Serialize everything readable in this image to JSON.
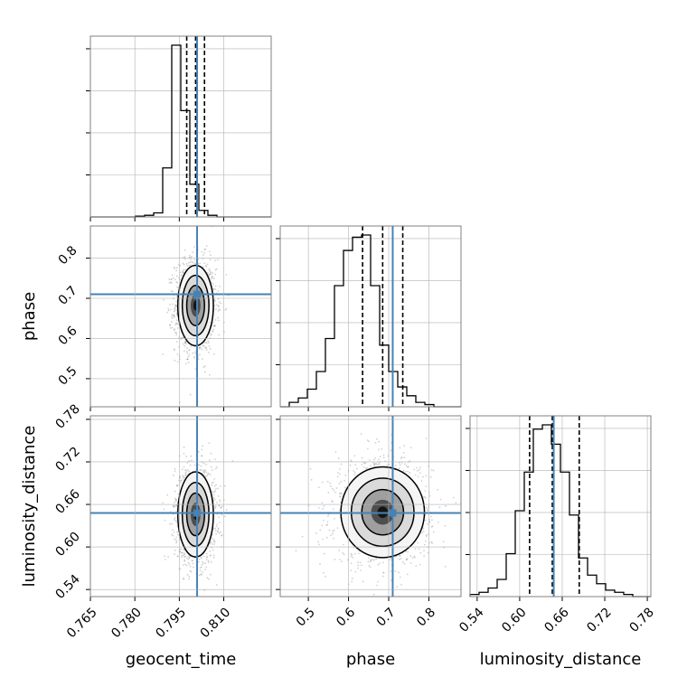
{
  "colors": {
    "truth": "#4682b4",
    "line": "#000000",
    "grid": "#b0b0b0",
    "scatter": "#7a7a7a"
  },
  "chart_data": {
    "type": "corner",
    "parameters": [
      "geocent_time",
      "phase",
      "luminosity_distance"
    ],
    "truth": {
      "geocent_time": 0.801,
      "phase": 0.71,
      "luminosity_distance": 0.648
    },
    "quantiles": {
      "geocent_time": [
        0.7975,
        0.8005,
        0.8035
      ],
      "phase": [
        0.635,
        0.685,
        0.735
      ],
      "luminosity_distance": [
        0.614,
        0.646,
        0.684
      ]
    },
    "axes": {
      "geocent_time": {
        "range": [
          0.765,
          0.826
        ],
        "ticks": [
          0.765,
          0.78,
          0.795,
          0.81
        ],
        "tick_labels": [
          "0.765",
          "0.780",
          "0.795",
          "0.810"
        ]
      },
      "phase": {
        "range": [
          0.43,
          0.88
        ],
        "ticks_x": [
          0.5,
          0.6,
          0.7,
          0.8
        ],
        "tick_labels_x": [
          "0.5",
          "0.6",
          "0.7",
          "0.8"
        ],
        "ticks_y": [
          0.5,
          0.6,
          0.7,
          0.8
        ],
        "tick_labels_y": [
          "0.5",
          "0.6",
          "0.7",
          "0.8"
        ]
      },
      "luminosity_distance": {
        "range": [
          0.53,
          0.785
        ],
        "ticks": [
          0.54,
          0.6,
          0.66,
          0.72,
          0.78
        ],
        "tick_labels": [
          "0.54",
          "0.60",
          "0.66",
          "0.72",
          "0.78"
        ]
      }
    },
    "histograms": {
      "geocent_time": {
        "edges_range": [
          0.765,
          0.826
        ],
        "bins": 20,
        "counts": [
          0,
          0,
          0,
          0,
          0,
          1,
          2,
          5,
          60,
          210,
          130,
          40,
          8,
          2,
          0,
          0,
          0,
          0,
          0,
          0
        ]
      },
      "phase": {
        "edges_range": [
          0.43,
          0.88
        ],
        "bins": 20,
        "counts": [
          0,
          2,
          4,
          8,
          16,
          31,
          55,
          71,
          77,
          78,
          55,
          28,
          16,
          9,
          5,
          2,
          1,
          0,
          0,
          0
        ]
      },
      "luminosity_distance": {
        "edges_range": [
          0.53,
          0.785
        ],
        "bins": 20,
        "counts": [
          1,
          2,
          4,
          8,
          20,
          40,
          58,
          78,
          80,
          71,
          58,
          38,
          18,
          10,
          6,
          3,
          2,
          1,
          0,
          0
        ]
      }
    },
    "density_2d": {
      "phase_vs_geocent_time": {
        "center": [
          0.8005,
          0.682
        ],
        "sigma": [
          0.003,
          0.05
        ]
      },
      "luminosity_distance_vs_geocent_time": {
        "center": [
          0.8005,
          0.646
        ],
        "sigma": [
          0.003,
          0.03
        ]
      },
      "luminosity_distance_vs_phase": {
        "center": [
          0.685,
          0.649
        ],
        "sigma": [
          0.052,
          0.032
        ]
      }
    },
    "grid": true
  }
}
